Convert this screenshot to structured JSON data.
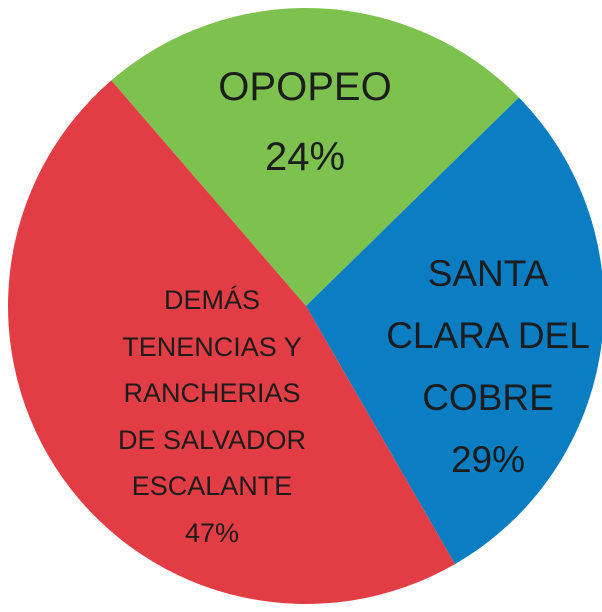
{
  "chart_data": {
    "type": "pie",
    "categories": [
      "OPOPEO",
      "SANTA CLARA DEL COBRE",
      "DEMÁS TENENCIAS Y RANCHERIAS DE SALVADOR ESCALANTE"
    ],
    "values": [
      24,
      29,
      47
    ],
    "value_labels": [
      "24%",
      "29%",
      "47%"
    ],
    "colors": [
      "#7dc24e",
      "#0a7dc3",
      "#e23d45"
    ]
  }
}
